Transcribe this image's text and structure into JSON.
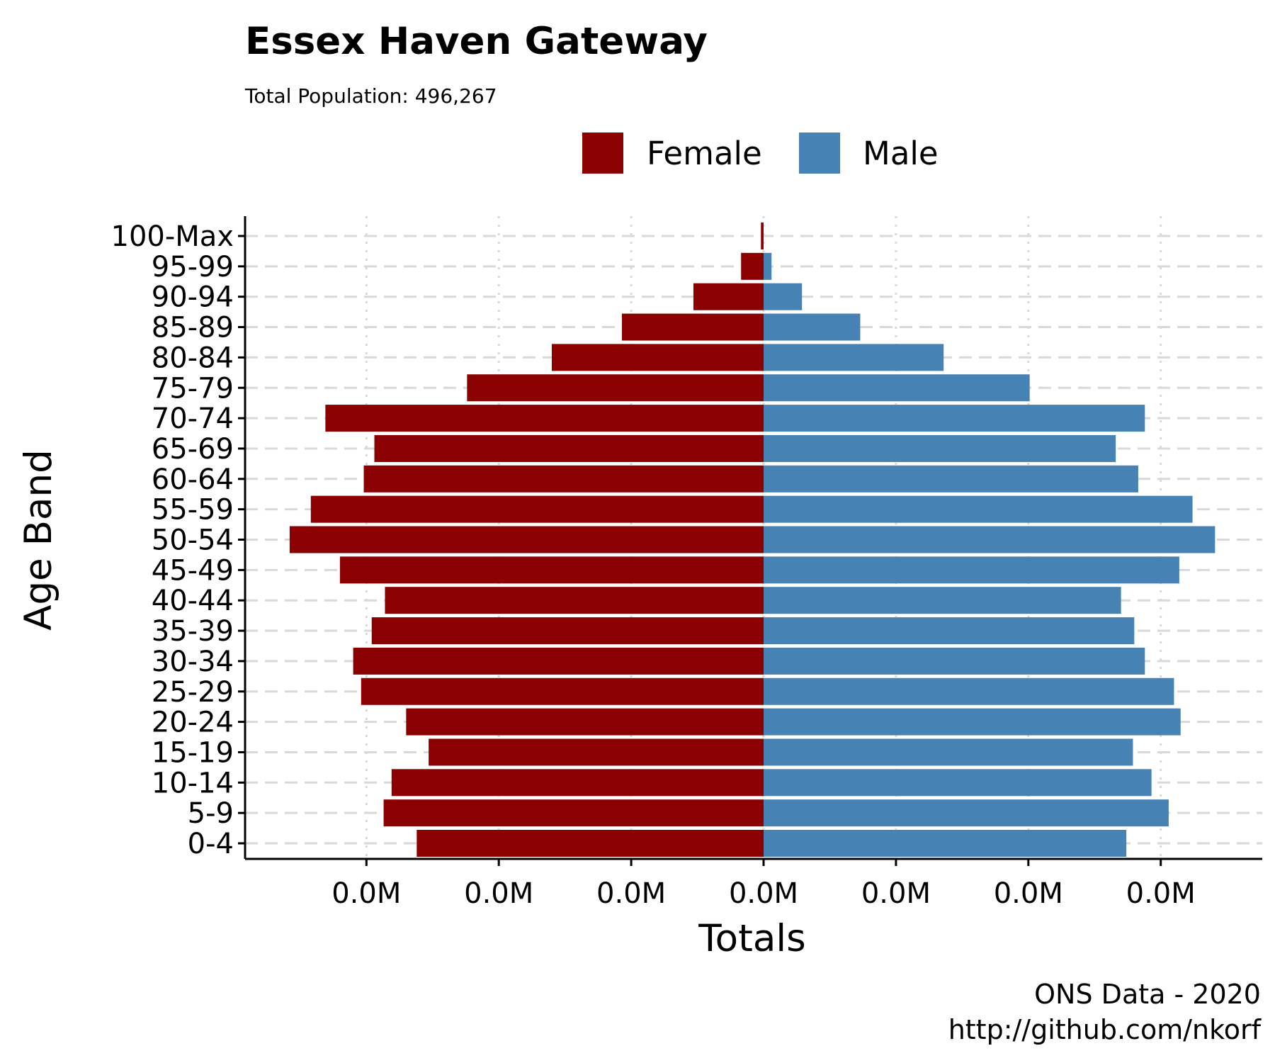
{
  "chart_data": {
    "type": "bar",
    "orientation": "horizontal-diverging",
    "title": "Essex Haven Gateway",
    "subtitle": "Total Population:  496,267",
    "xlabel": "Totals",
    "ylabel": "Age Band",
    "caption_lines": [
      "ONS Data - 2020",
      "http://github.com/nkorf"
    ],
    "legend_position": "top",
    "grid": true,
    "categories": [
      "0-4",
      "5-9",
      "10-14",
      "15-19",
      "20-24",
      "25-29",
      "30-34",
      "35-39",
      "40-44",
      "45-49",
      "50-54",
      "55-59",
      "60-64",
      "65-69",
      "70-74",
      "75-79",
      "80-84",
      "85-89",
      "90-94",
      "95-99",
      "100-Max"
    ],
    "series": [
      {
        "name": "Female",
        "color": "#8B0000",
        "values": [
          13100,
          14350,
          14050,
          12650,
          13500,
          15200,
          15500,
          14800,
          14300,
          16000,
          17900,
          17100,
          15100,
          14700,
          16550,
          11200,
          8000,
          5350,
          2650,
          850,
          100
        ]
      },
      {
        "name": "Male",
        "color": "#4682B4",
        "values": [
          13700,
          15300,
          14650,
          13950,
          15750,
          15500,
          14400,
          14000,
          13500,
          15700,
          17050,
          16200,
          14150,
          13300,
          14400,
          10050,
          6800,
          3650,
          1450,
          300,
          0
        ]
      }
    ],
    "xlim": [
      -18500,
      18500
    ],
    "xtick_values": [
      -15000,
      -10000,
      -5000,
      0,
      5000,
      10000,
      15000
    ],
    "xtick_labels": [
      "0.0M",
      "0.0M",
      "0.0M",
      "0.0M",
      "0.0M",
      "0.0M",
      "0.0M"
    ]
  }
}
